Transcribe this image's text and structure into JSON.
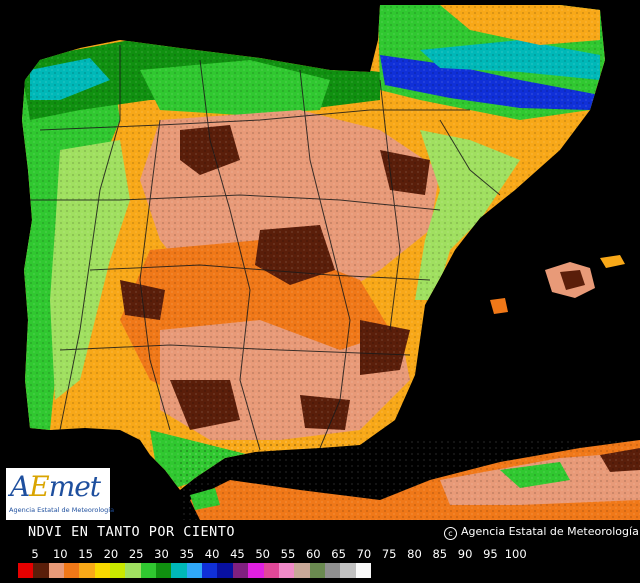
{
  "legend": {
    "title": "NDVI EN TANTO POR CIENTO",
    "ticks": [
      "5",
      "10",
      "15",
      "20",
      "25",
      "30",
      "35",
      "40",
      "45",
      "50",
      "55",
      "60",
      "65",
      "70",
      "75",
      "80",
      "85",
      "90",
      "95",
      "100"
    ],
    "colors": [
      "#e60000",
      "#5a1e0a",
      "#e89a78",
      "#f07818",
      "#f8a818",
      "#f8d800",
      "#c8e800",
      "#a0e060",
      "#30c830",
      "#109010",
      "#00b8b8",
      "#30a8f8",
      "#1030d8",
      "#0810a0",
      "#802080",
      "#e020e0",
      "#e04898",
      "#f08ac8",
      "#c8a898",
      "#6a8a50",
      "#909090",
      "#c0c0c0",
      "#f8f8f8"
    ]
  },
  "logo": {
    "mark_start": "A",
    "mark_accent": "E",
    "mark_end": "met",
    "subtitle": "Agencia Estatal de Meteorología"
  },
  "copyright": "Agencia Estatal de Meteorología",
  "map_colors": {
    "background": "#000000",
    "land_low": "#e89a78",
    "land_mid": "#f8a818",
    "land_orange": "#f07818",
    "land_dark": "#5a1e0a",
    "land_green": "#30c830",
    "land_dark_green": "#109010",
    "land_lime": "#a0e060",
    "land_cyan": "#00b8b8",
    "land_blue": "#1030d8",
    "borders": "#1a1a1a"
  }
}
